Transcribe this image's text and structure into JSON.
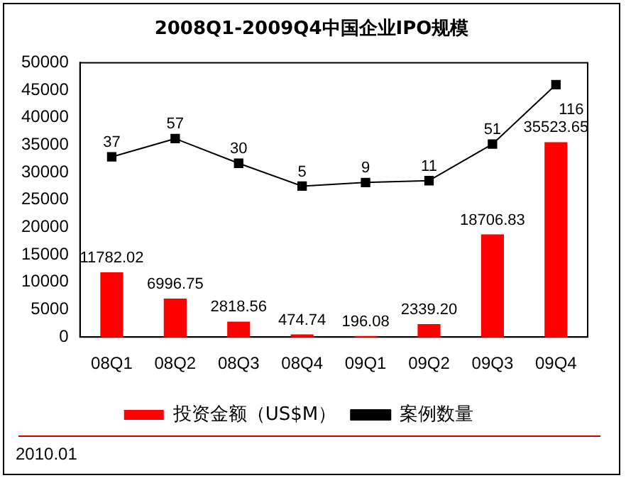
{
  "chart_data": {
    "type": "bar",
    "title": "2008Q1-2009Q4中国企业IPO规模",
    "categories": [
      "08Q1",
      "08Q2",
      "08Q3",
      "08Q4",
      "09Q1",
      "09Q2",
      "09Q3",
      "09Q4"
    ],
    "series": [
      {
        "name": "投资金额（US$M）",
        "color": "#ff0000",
        "values": [
          11782.02,
          6996.75,
          2818.56,
          474.74,
          196.08,
          2339.2,
          18706.83,
          35523.65
        ],
        "value_labels": [
          "11782.02",
          "6996.75",
          "2818.56",
          "474.74",
          "196.08",
          "2339.20",
          "18706.83",
          "35523.65"
        ]
      },
      {
        "name": "案例数量",
        "type": "line",
        "axis": "y2",
        "color": "#000000",
        "marker": "square",
        "values": [
          37,
          57,
          30,
          5,
          9,
          11,
          51,
          116
        ],
        "value_labels": [
          "37",
          "57",
          "30",
          "5",
          "9",
          "11",
          "51",
          "116"
        ]
      }
    ],
    "ylim": [
      0,
      50000
    ],
    "yticks": [
      0,
      5000,
      10000,
      15000,
      20000,
      25000,
      30000,
      35000,
      40000,
      45000,
      50000
    ],
    "y2lim": [
      -160,
      140
    ],
    "tick_labels": "xy",
    "grid": false,
    "legend": "bottom",
    "annotations": [
      "2010.01"
    ]
  }
}
